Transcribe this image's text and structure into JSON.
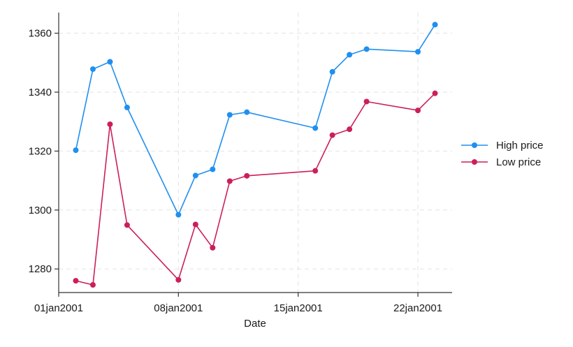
{
  "chart_data": {
    "type": "line",
    "title": "",
    "xlabel": "Date",
    "ylabel": "",
    "x_range": [
      "2001-01-01",
      "2001-01-24"
    ],
    "ylim": [
      1272,
      1367
    ],
    "x_ticks": [
      {
        "date": "2001-01-01",
        "label": "01jan2001"
      },
      {
        "date": "2001-01-08",
        "label": "08jan2001"
      },
      {
        "date": "2001-01-15",
        "label": "15jan2001"
      },
      {
        "date": "2001-01-22",
        "label": "22jan2001"
      }
    ],
    "y_ticks": [
      1280,
      1300,
      1320,
      1340,
      1360
    ],
    "y_tick_labels": [
      "1280",
      "1300",
      "1320",
      "1340",
      "1360"
    ],
    "grid": true,
    "legend_position": "right",
    "x": [
      "2001-01-02",
      "2001-01-03",
      "2001-01-04",
      "2001-01-05",
      "2001-01-08",
      "2001-01-09",
      "2001-01-10",
      "2001-01-11",
      "2001-01-12",
      "2001-01-16",
      "2001-01-17",
      "2001-01-18",
      "2001-01-19",
      "2001-01-22",
      "2001-01-23"
    ],
    "series": [
      {
        "name": "High price",
        "color": "#1f8ff0",
        "values": [
          1320.3,
          1347.8,
          1350.3,
          1334.8,
          1298.4,
          1311.7,
          1313.8,
          1332.3,
          1333.2,
          1327.8,
          1346.9,
          1352.7,
          1354.6,
          1353.7,
          1362.9
        ]
      },
      {
        "name": "Low price",
        "color": "#cc1f5a",
        "values": [
          1276.0,
          1274.6,
          1329.1,
          1294.9,
          1276.3,
          1295.1,
          1287.2,
          1309.8,
          1311.6,
          1313.3,
          1325.4,
          1327.4,
          1336.8,
          1333.8,
          1339.6
        ]
      }
    ]
  }
}
